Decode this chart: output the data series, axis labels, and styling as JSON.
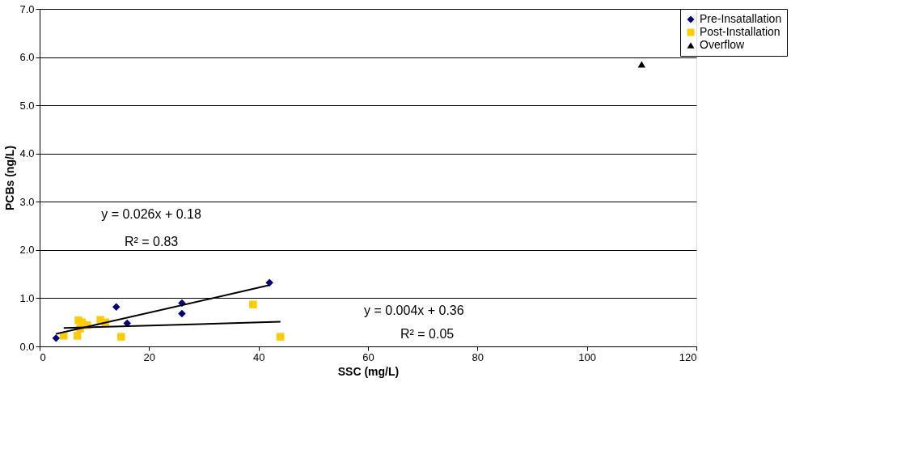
{
  "chart_data": {
    "type": "scatter",
    "xlabel": "SSC (mg/L)",
    "ylabel": "PCBs (ng/L)",
    "xlim": [
      0,
      120
    ],
    "xticks": [
      0,
      20,
      40,
      60,
      80,
      100,
      120
    ],
    "ylim": [
      0,
      7
    ],
    "yticks": [
      {
        "value": 0,
        "label": "0.0"
      },
      {
        "value": 1,
        "label": "1.0"
      },
      {
        "value": 2,
        "label": "2.0"
      },
      {
        "value": 3,
        "label": "3.0"
      },
      {
        "value": 4,
        "label": "4.0"
      },
      {
        "value": 5,
        "label": "5.0"
      },
      {
        "value": 6,
        "label": "6.0"
      },
      {
        "value": 7,
        "label": "7.0"
      }
    ],
    "grid": "y",
    "legend": "top right",
    "series": [
      {
        "name": "Pre-Insatallation",
        "color": "#000080",
        "marker": "diamond",
        "x": [
          3,
          14,
          16,
          26,
          26,
          42
        ],
        "values": [
          0.17,
          0.82,
          0.48,
          0.9,
          0.68,
          1.32
        ]
      },
      {
        "name": "Post-Installation",
        "color": "#ffcc00",
        "marker": "square",
        "x": [
          4.4,
          7.1,
          7.7,
          8.7,
          7.4,
          6.9,
          11.1,
          12,
          14.9,
          39,
          44
        ],
        "values": [
          0.22,
          0.54,
          0.5,
          0.44,
          0.37,
          0.22,
          0.55,
          0.5,
          0.2,
          0.87,
          0.2
        ]
      },
      {
        "name": "Overflow",
        "color": "#000000",
        "marker": "triangle",
        "x": [
          110
        ],
        "values": [
          5.85
        ]
      },
      {
        "type": "line",
        "color": "#000000",
        "marker": "none",
        "x": [
          3,
          42
        ],
        "values": [
          0.26,
          1.27
        ]
      },
      {
        "type": "line",
        "color": "#000000",
        "marker": "none",
        "x": [
          4.4,
          44
        ],
        "values": [
          0.38,
          0.51
        ]
      }
    ],
    "annotations": [
      "y = 0.026x + 0.18",
      "R² = 0.83",
      "y = 0.004x + 0.36",
      "R² = 0.05"
    ]
  }
}
